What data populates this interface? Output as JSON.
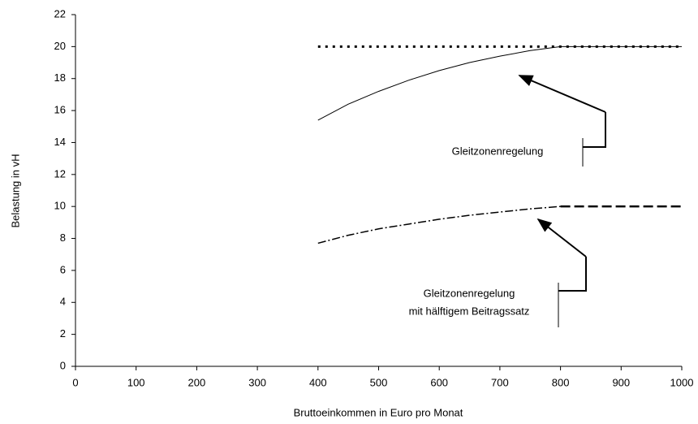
{
  "chart_data": {
    "type": "line",
    "xlabel": "Bruttoeinkommen in Euro pro Monat",
    "ylabel": "Belastung in vH",
    "xlim": [
      0,
      1000
    ],
    "xticks": [
      0,
      100,
      200,
      300,
      400,
      500,
      600,
      700,
      800,
      900,
      1000
    ],
    "ylim": [
      0,
      22
    ],
    "yticks": [
      0,
      2,
      4,
      6,
      8,
      10,
      12,
      14,
      16,
      18,
      20,
      22
    ],
    "series": [
      {
        "color": "#000000",
        "style": "dotted",
        "x": [
          400,
          1000
        ],
        "values": [
          20,
          20
        ]
      },
      {
        "color": "#000000",
        "style": "solid",
        "x": [
          400,
          450,
          500,
          550,
          600,
          650,
          700,
          750,
          800,
          1000
        ],
        "values": [
          15.4,
          16.4,
          17.2,
          17.9,
          18.5,
          19.0,
          19.4,
          19.75,
          20,
          20
        ]
      },
      {
        "color": "#000000",
        "style": "dashdot",
        "x": [
          400,
          450,
          500,
          550,
          600,
          650,
          700,
          750,
          800
        ],
        "values": [
          7.7,
          8.2,
          8.6,
          8.9,
          9.2,
          9.45,
          9.65,
          9.85,
          10
        ]
      },
      {
        "color": "#000000",
        "style": "dashed",
        "x": [
          800,
          1000
        ],
        "values": [
          10,
          10
        ]
      }
    ],
    "annotations": [
      "Gleitzonenregelung",
      "Gleitzonenregelung",
      "mit hälftigem Beitragssatz"
    ]
  }
}
